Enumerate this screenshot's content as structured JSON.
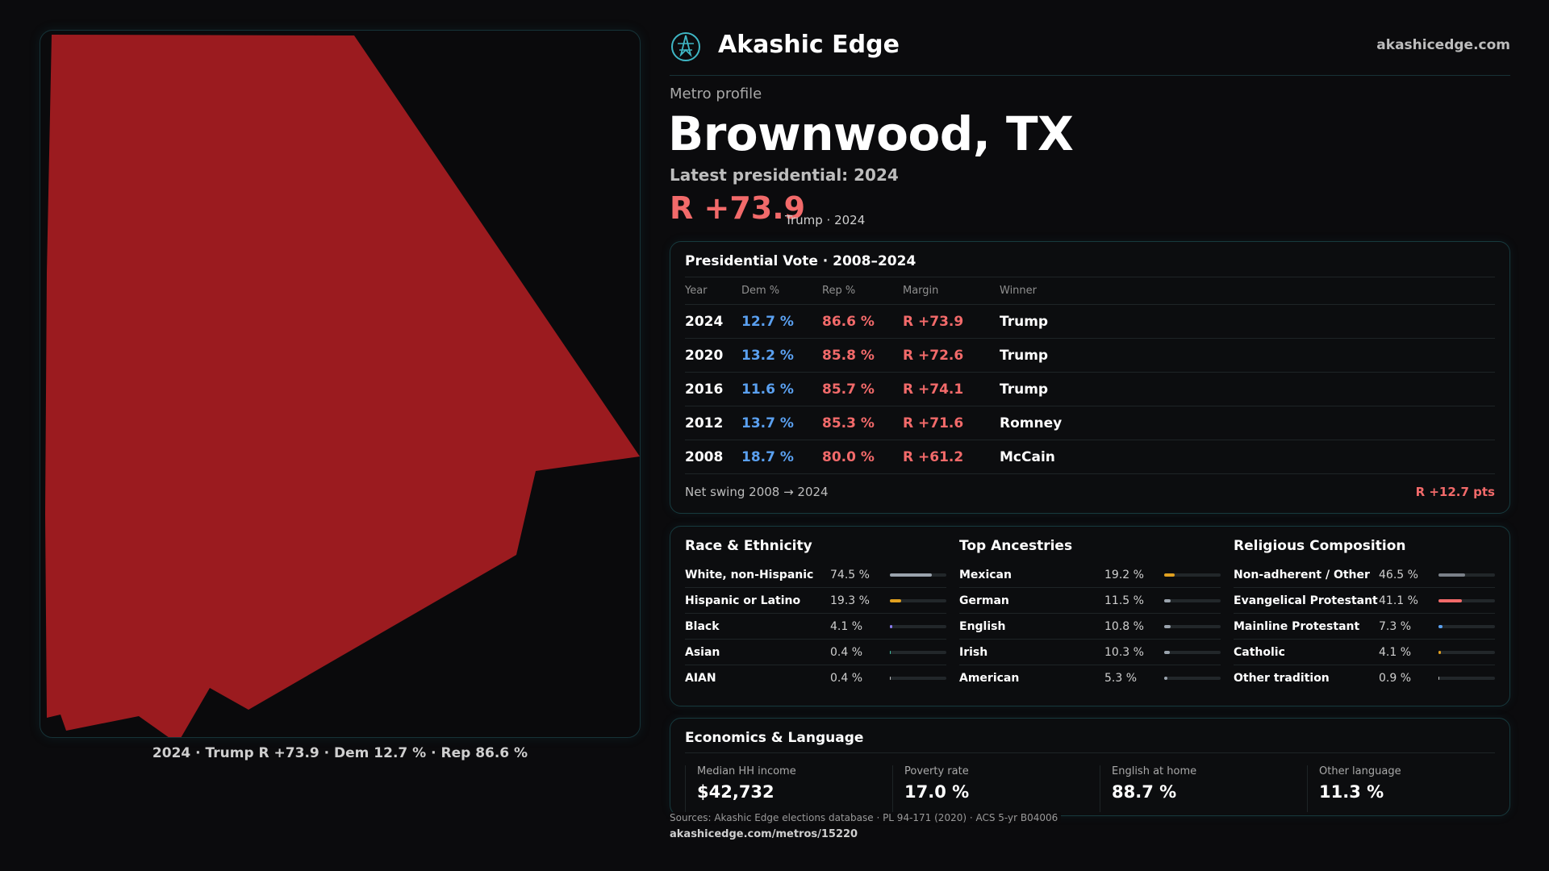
{
  "map": {
    "caption": "2024 · Trump R +73.9 · Dem 12.7 % · Rep 86.6 %",
    "fill_color": "#9b1b1f"
  },
  "header": {
    "brand": "Akashic Edge",
    "site": "akashicedge.com",
    "logo_icon": "compass-logo-icon"
  },
  "profile": {
    "eyebrow": "Metro profile",
    "city": "Brownwood, TX",
    "latest_label": "Latest presidential: 2024",
    "margin": "R +73.9",
    "margin_note": "Trump · 2024"
  },
  "vote_table": {
    "title": "Presidential Vote · 2008–2024",
    "columns": [
      "Year",
      "Dem %",
      "Rep %",
      "Margin",
      "Winner"
    ],
    "rows": [
      {
        "year": "2024",
        "dem": "12.7 %",
        "rep": "86.6 %",
        "margin": "R +73.9",
        "winner": "Trump"
      },
      {
        "year": "2020",
        "dem": "13.2 %",
        "rep": "85.8 %",
        "margin": "R +72.6",
        "winner": "Trump"
      },
      {
        "year": "2016",
        "dem": "11.6 %",
        "rep": "85.7 %",
        "margin": "R +74.1",
        "winner": "Trump"
      },
      {
        "year": "2012",
        "dem": "13.7 %",
        "rep": "85.3 %",
        "margin": "R +71.6",
        "winner": "Romney"
      },
      {
        "year": "2008",
        "dem": "18.7 %",
        "rep": "80.0 %",
        "margin": "R +61.2",
        "winner": "McCain"
      }
    ],
    "swing_label": "Net swing 2008 → 2024",
    "swing_value": "R +12.7 pts"
  },
  "race": {
    "title": "Race & Ethnicity",
    "items": [
      {
        "label": "White, non-Hispanic",
        "value": "74.5 %",
        "pct": 74.5,
        "color": "#9aa3ad"
      },
      {
        "label": "Hispanic or Latino",
        "value": "19.3 %",
        "pct": 19.3,
        "color": "#e0a020"
      },
      {
        "label": "Black",
        "value": "4.1 %",
        "pct": 4.1,
        "color": "#8a7cf0"
      },
      {
        "label": "Asian",
        "value": "0.4 %",
        "pct": 0.4,
        "color": "#40c0a0"
      },
      {
        "label": "AIAN",
        "value": "0.4 %",
        "pct": 0.4,
        "color": "#c0c0c0"
      }
    ]
  },
  "ancestry": {
    "title": "Top Ancestries",
    "items": [
      {
        "label": "Mexican",
        "value": "19.2 %",
        "pct": 19.2,
        "color": "#e0a020"
      },
      {
        "label": "German",
        "value": "11.5 %",
        "pct": 11.5,
        "color": "#9aa3ad"
      },
      {
        "label": "English",
        "value": "10.8 %",
        "pct": 10.8,
        "color": "#9aa3ad"
      },
      {
        "label": "Irish",
        "value": "10.3 %",
        "pct": 10.3,
        "color": "#9aa3ad"
      },
      {
        "label": "American",
        "value": "5.3 %",
        "pct": 5.3,
        "color": "#9aa3ad"
      }
    ]
  },
  "religion": {
    "title": "Religious Composition",
    "items": [
      {
        "label": "Non-adherent / Other",
        "value": "46.5 %",
        "pct": 46.5,
        "color": "#7a8088"
      },
      {
        "label": "Evangelical Protestant",
        "value": "41.1 %",
        "pct": 41.1,
        "color": "#f26a6a"
      },
      {
        "label": "Mainline Protestant",
        "value": "7.3 %",
        "pct": 7.3,
        "color": "#5aa0f0"
      },
      {
        "label": "Catholic",
        "value": "4.1 %",
        "pct": 4.1,
        "color": "#e0a020"
      },
      {
        "label": "Other tradition",
        "value": "0.9 %",
        "pct": 0.9,
        "color": "#c0c0c0"
      }
    ]
  },
  "economics": {
    "title": "Economics & Language",
    "cells": [
      {
        "label": "Median HH income",
        "value": "$42,732"
      },
      {
        "label": "Poverty rate",
        "value": "17.0 %"
      },
      {
        "label": "English at home",
        "value": "88.7 %"
      },
      {
        "label": "Other language",
        "value": "11.3 %"
      }
    ]
  },
  "footer": {
    "sources": "Sources: Akashic Edge elections database · PL 94-171 (2020) · ACS 5-yr B04006",
    "url": "akashicedge.com/metros/15220"
  }
}
